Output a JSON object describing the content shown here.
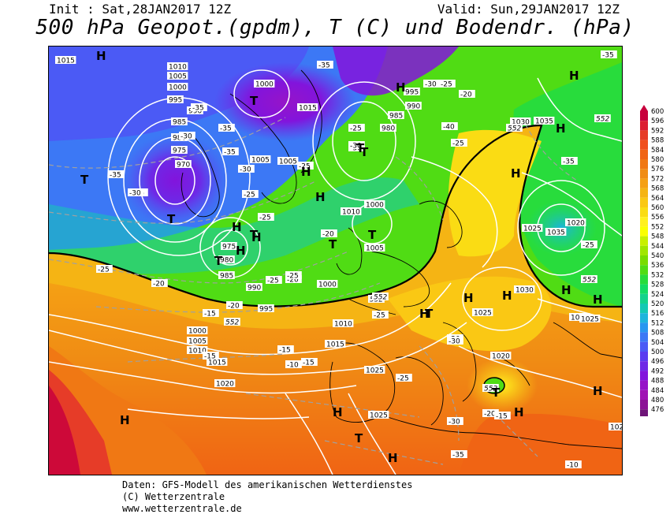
{
  "header": {
    "init": "Init : Sat,28JAN2017 12Z",
    "valid": "Valid: Sun,29JAN2017 12Z",
    "title": "500 hPa Geopot.(gpdm), T (C) und Bodendr. (hPa)"
  },
  "legend": {
    "levels": [
      "600",
      "596",
      "592",
      "588",
      "584",
      "580",
      "576",
      "572",
      "568",
      "564",
      "560",
      "556",
      "552",
      "548",
      "544",
      "540",
      "536",
      "532",
      "528",
      "524",
      "520",
      "516",
      "512",
      "508",
      "504",
      "500",
      "496",
      "492",
      "488",
      "484",
      "480",
      "476"
    ],
    "colors": [
      "#c8003c",
      "#dc1e32",
      "#e63c28",
      "#f0501e",
      "#f06414",
      "#f07814",
      "#f08c14",
      "#f5a014",
      "#f5b414",
      "#fac814",
      "#fadc14",
      "#fff01e",
      "#faff00",
      "#c8f000",
      "#a0e600",
      "#78dc00",
      "#50dc14",
      "#28dc3c",
      "#14dc64",
      "#14d28c",
      "#14c8b4",
      "#1eb4dc",
      "#2896f0",
      "#3c78f5",
      "#4b5af5",
      "#5a3cf0",
      "#6e28e6",
      "#8214dc",
      "#9614c8",
      "#a014b4",
      "#8c1496",
      "#6e1478"
    ]
  },
  "map": {
    "pressure_labels": [
      "1015",
      "1010",
      "1005",
      "1000",
      "995",
      "990",
      "985",
      "980",
      "975",
      "970",
      "1000",
      "1015",
      "1005",
      "1010",
      "995",
      "990",
      "985",
      "980",
      "1035",
      "1030",
      "1025",
      "1020",
      "1025",
      "1000",
      "1005",
      "1010",
      "1015",
      "1000",
      "995",
      "990",
      "985",
      "980",
      "975",
      "1020",
      "1015",
      "1010",
      "1005",
      "1000",
      "1025",
      "1020",
      "1025",
      "1020",
      "1030",
      "1025",
      "1035",
      "1025",
      "1005"
    ],
    "temp_labels": [
      "-35",
      "-35",
      "-30",
      "-35",
      "-35",
      "-30",
      "-25",
      "-25",
      "-25",
      "-20",
      "-30",
      "-35",
      "-35",
      "-30",
      "-25",
      "-20",
      "-25",
      "-20",
      "-25",
      "-25",
      "-20",
      "-15",
      "-15",
      "-10",
      "-15",
      "-20",
      "-25",
      "-15",
      "-25",
      "-20",
      "-25",
      "-20",
      "-15",
      "-35",
      "-30",
      "-40",
      "-35",
      "-25",
      "-30",
      "-30",
      "-35",
      "-25",
      "-30",
      "-10"
    ],
    "geopot_labels": [
      "552",
      "552",
      "552",
      "552",
      "552",
      "552",
      "552"
    ],
    "high_symbols": [
      "H",
      "H",
      "H",
      "H",
      "H",
      "H",
      "H",
      "H",
      "H",
      "H",
      "H",
      "H",
      "H",
      "H",
      "H",
      "H",
      "H",
      "H",
      "H",
      "H"
    ],
    "low_symbols": [
      "T",
      "T",
      "T",
      "T",
      "T",
      "T",
      "T",
      "T",
      "T",
      "T",
      "T",
      "T"
    ]
  },
  "footer": {
    "line1": "Daten: GFS-Modell des amerikanischen Wetterdienstes",
    "line2": "(C) Wetterzentrale",
    "line3": "www.wetterzentrale.de"
  }
}
